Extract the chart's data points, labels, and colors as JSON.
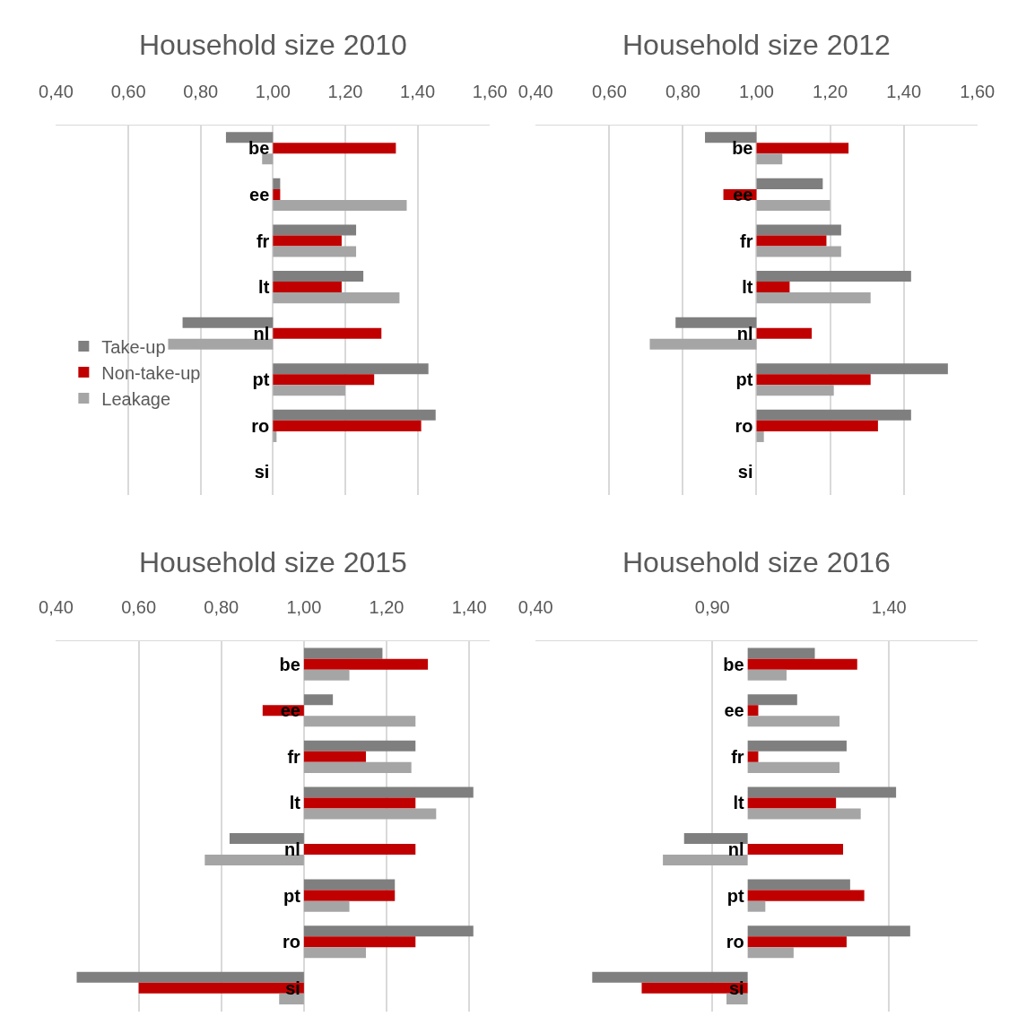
{
  "chart_data": [
    {
      "type": "bar",
      "orientation": "horizontal",
      "title": "Household size 2010",
      "categories": [
        "be",
        "ee",
        "fr",
        "lt",
        "nl",
        "pt",
        "ro",
        "si"
      ],
      "xlim": [
        0.4,
        1.6
      ],
      "xticks": [
        {
          "value": 0.4,
          "label": "0,40"
        },
        {
          "value": 0.6,
          "label": "0,60"
        },
        {
          "value": 0.8,
          "label": "0,80"
        },
        {
          "value": 1.0,
          "label": "1,00"
        },
        {
          "value": 1.2,
          "label": "1,20"
        },
        {
          "value": 1.4,
          "label": "1,40"
        },
        {
          "value": 1.6,
          "label": "1,60"
        }
      ],
      "grid": "x",
      "legend": "left",
      "series": [
        {
          "name": "Take-up",
          "color": "#7f7f7f",
          "base": [
            1,
            1,
            1,
            1,
            1,
            1,
            1,
            null
          ],
          "values": [
            -0.13,
            0.02,
            0.23,
            0.25,
            -0.25,
            0.43,
            0.45,
            null
          ]
        },
        {
          "name": "Non-take-up",
          "color": "#c00000",
          "base": [
            1,
            1,
            1,
            1,
            1,
            1,
            1,
            null
          ],
          "values": [
            0.34,
            0.02,
            0.19,
            0.19,
            0.3,
            0.28,
            0.41,
            null
          ]
        },
        {
          "name": "Leakage",
          "color": "#a5a5a5",
          "base": [
            1,
            1,
            1,
            1,
            1,
            1,
            1,
            null
          ],
          "values": [
            -0.03,
            0.37,
            0.23,
            0.35,
            -0.29,
            0.2,
            0.01,
            null
          ]
        }
      ]
    },
    {
      "type": "bar",
      "orientation": "horizontal",
      "title": "Household size 2012",
      "categories": [
        "be",
        "ee",
        "fr",
        "lt",
        "nl",
        "pt",
        "ro",
        "si"
      ],
      "xlim": [
        0.4,
        1.6
      ],
      "xticks": [
        {
          "value": 0.4,
          "label": "0,40"
        },
        {
          "value": 0.6,
          "label": "0,60"
        },
        {
          "value": 0.8,
          "label": "0,80"
        },
        {
          "value": 1.0,
          "label": "1,00"
        },
        {
          "value": 1.2,
          "label": "1,20"
        },
        {
          "value": 1.4,
          "label": "1,40"
        },
        {
          "value": 1.6,
          "label": "1,60"
        }
      ],
      "grid": "x",
      "series": [
        {
          "color": "#7f7f7f",
          "base": [
            1,
            1,
            1,
            1,
            1,
            1,
            1,
            null
          ],
          "values": [
            -0.14,
            0.18,
            0.23,
            0.42,
            -0.22,
            0.52,
            0.42,
            null
          ]
        },
        {
          "color": "#c00000",
          "base": [
            1,
            1,
            1,
            1,
            1,
            1,
            1,
            null
          ],
          "values": [
            0.25,
            -0.09,
            0.19,
            0.09,
            0.15,
            0.31,
            0.33,
            null
          ]
        },
        {
          "color": "#a5a5a5",
          "base": [
            1,
            1,
            1,
            1,
            1,
            1,
            1,
            null
          ],
          "values": [
            0.07,
            0.2,
            0.23,
            0.31,
            -0.29,
            0.21,
            0.02,
            null
          ]
        }
      ]
    },
    {
      "type": "bar",
      "orientation": "horizontal",
      "title": "Household size 2015",
      "categories": [
        "be",
        "ee",
        "fr",
        "lt",
        "nl",
        "pt",
        "ro",
        "si"
      ],
      "xlim": [
        0.4,
        1.45
      ],
      "xticks": [
        {
          "value": 0.4,
          "label": "0,40"
        },
        {
          "value": 0.6,
          "label": "0,60"
        },
        {
          "value": 0.8,
          "label": "0,80"
        },
        {
          "value": 1.0,
          "label": "1,00"
        },
        {
          "value": 1.2,
          "label": "1,20"
        },
        {
          "value": 1.4,
          "label": "1,40"
        }
      ],
      "grid": "x",
      "series": [
        {
          "color": "#7f7f7f",
          "base": [
            1,
            1,
            1,
            1,
            1,
            1,
            1,
            1
          ],
          "values": [
            0.19,
            0.07,
            0.27,
            0.41,
            -0.18,
            0.22,
            0.41,
            -0.55
          ]
        },
        {
          "color": "#c00000",
          "base": [
            1,
            1,
            1,
            1,
            1,
            1,
            1,
            1
          ],
          "values": [
            0.3,
            -0.1,
            0.15,
            0.27,
            0.27,
            0.22,
            0.27,
            -0.4
          ]
        },
        {
          "color": "#a5a5a5",
          "base": [
            1,
            1,
            1,
            1,
            1,
            1,
            1,
            1
          ],
          "values": [
            0.11,
            0.27,
            0.26,
            0.32,
            -0.24,
            0.11,
            0.15,
            -0.06
          ]
        }
      ]
    },
    {
      "type": "bar",
      "orientation": "horizontal",
      "title": "Household size 2016",
      "categories": [
        "be",
        "ee",
        "fr",
        "lt",
        "nl",
        "pt",
        "ro",
        "si"
      ],
      "xlim": [
        0.4,
        1.65
      ],
      "xticks": [
        {
          "value": 0.4,
          "label": "0,40"
        },
        {
          "value": 0.9,
          "label": "0,90"
        },
        {
          "value": 1.4,
          "label": "1,40"
        }
      ],
      "grid": "x",
      "series": [
        {
          "color": "#7f7f7f",
          "base": [
            1,
            1,
            1,
            1,
            1,
            1,
            1,
            1
          ],
          "values": [
            0.19,
            0.14,
            0.28,
            0.42,
            -0.18,
            0.29,
            0.46,
            -0.44
          ]
        },
        {
          "color": "#c00000",
          "base": [
            1,
            1,
            1,
            1,
            1,
            1,
            1,
            1
          ],
          "values": [
            0.31,
            0.03,
            0.03,
            0.25,
            0.27,
            0.33,
            0.28,
            -0.3
          ]
        },
        {
          "color": "#a5a5a5",
          "base": [
            1,
            1,
            1,
            1,
            1,
            1,
            1,
            1
          ],
          "values": [
            0.11,
            0.26,
            0.26,
            0.32,
            -0.24,
            0.05,
            0.13,
            -0.06
          ]
        }
      ]
    }
  ]
}
